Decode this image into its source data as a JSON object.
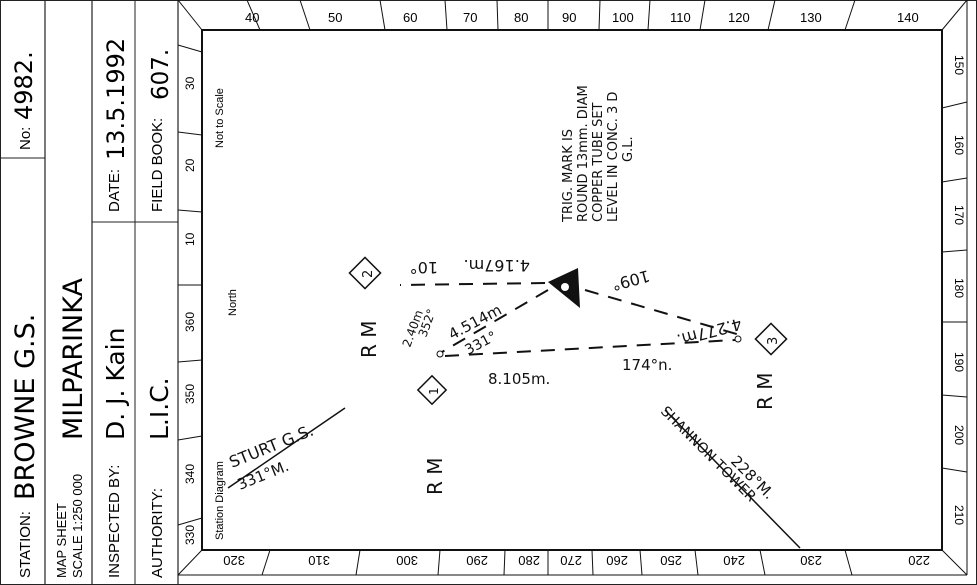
{
  "form": {
    "station_label": "STATION:",
    "station_value": "BROWNE  G.S.",
    "number_label": "No:",
    "number_value": "4982.",
    "map_sheet_label": "MAP SHEET",
    "scale_label": "SCALE 1:250 000",
    "map_sheet_value": "MILPARINKA",
    "date_label": "DATE:",
    "date_value": "13.5.1992",
    "inspected_label": "INSPECTED BY:",
    "inspected_value": "D. J. Kain",
    "field_book_label": "FIELD BOOK:",
    "field_book_value": "607.",
    "authority_label": "AUTHORITY:",
    "authority_value": "L.I.C."
  },
  "diagram": {
    "not_to_scale": "Not to Scale",
    "north": "North",
    "station_diagram": "Station Diagram",
    "top_ticks": [
      "40",
      "50",
      "60",
      "70",
      "80",
      "90",
      "100",
      "110",
      "120",
      "130",
      "140"
    ],
    "bottom_ticks": [
      "320",
      "310",
      "300",
      "290",
      "280",
      "270",
      "260",
      "250",
      "240",
      "230",
      "220"
    ],
    "left_ticks": [
      "30",
      "20",
      "10",
      "360",
      "350",
      "340",
      "330"
    ],
    "right_ticks": [
      "150",
      "160",
      "170",
      "180",
      "190",
      "200",
      "210"
    ],
    "note_lines": [
      "TRIG. MARK IS",
      "ROUND 13mm. DIAM",
      "COPPER TUBE SET",
      "LEVEL IN CONC. 3 D",
      "G.L."
    ],
    "rm1": "1",
    "rm2": "2",
    "rm3": "3",
    "rm_label": "R M",
    "dist_to_rm2": "4.167m.",
    "bearing_to_rm2": "10°",
    "dist_to_rm3": "4.277m.",
    "bearing_to_rm3": "109°",
    "dist_to_rm1": "4.514m",
    "bearing_to_rm1": "331°",
    "bearing_rm1_to_rm3": "174°n.",
    "dist_rm1_to_rm3": "8.105m.",
    "rm1_offset_dist": "2.40m",
    "rm1_offset_bearing": "352°",
    "sturt_label": "STURT G.S.",
    "sturt_bearing": "331°M.",
    "shannon_label": "SHANNON TOWER",
    "shannon_bearing": "228°M."
  }
}
